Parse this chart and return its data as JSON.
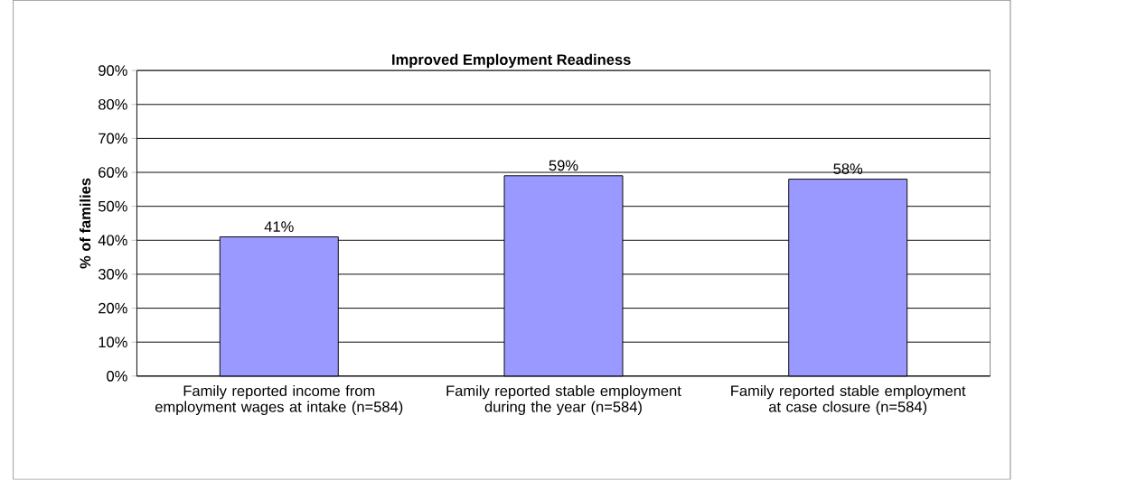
{
  "chart_data": {
    "type": "bar",
    "title": "Improved Employment Readiness",
    "ylabel": "% of families",
    "categories": [
      "Family reported income from employment wages at intake (n=584)",
      "Family reported stable employment during the year (n=584)",
      "Family reported stable employment at case closure (n=584)"
    ],
    "values": [
      41,
      59,
      58
    ],
    "color": "#9999ff",
    "data_labels": true,
    "value_labels": [
      "41%",
      "59%",
      "58%"
    ],
    "ylim": [
      0,
      90
    ],
    "yticks": [
      {
        "value": 0,
        "label": "0%"
      },
      {
        "value": 10,
        "label": "10%"
      },
      {
        "value": 20,
        "label": "20%"
      },
      {
        "value": 30,
        "label": "30%"
      },
      {
        "value": 40,
        "label": "40%"
      },
      {
        "value": 50,
        "label": "50%"
      },
      {
        "value": 60,
        "label": "60%"
      },
      {
        "value": 70,
        "label": "70%"
      },
      {
        "value": 80,
        "label": "80%"
      },
      {
        "value": 90,
        "label": "90%"
      }
    ],
    "grid": "y"
  }
}
